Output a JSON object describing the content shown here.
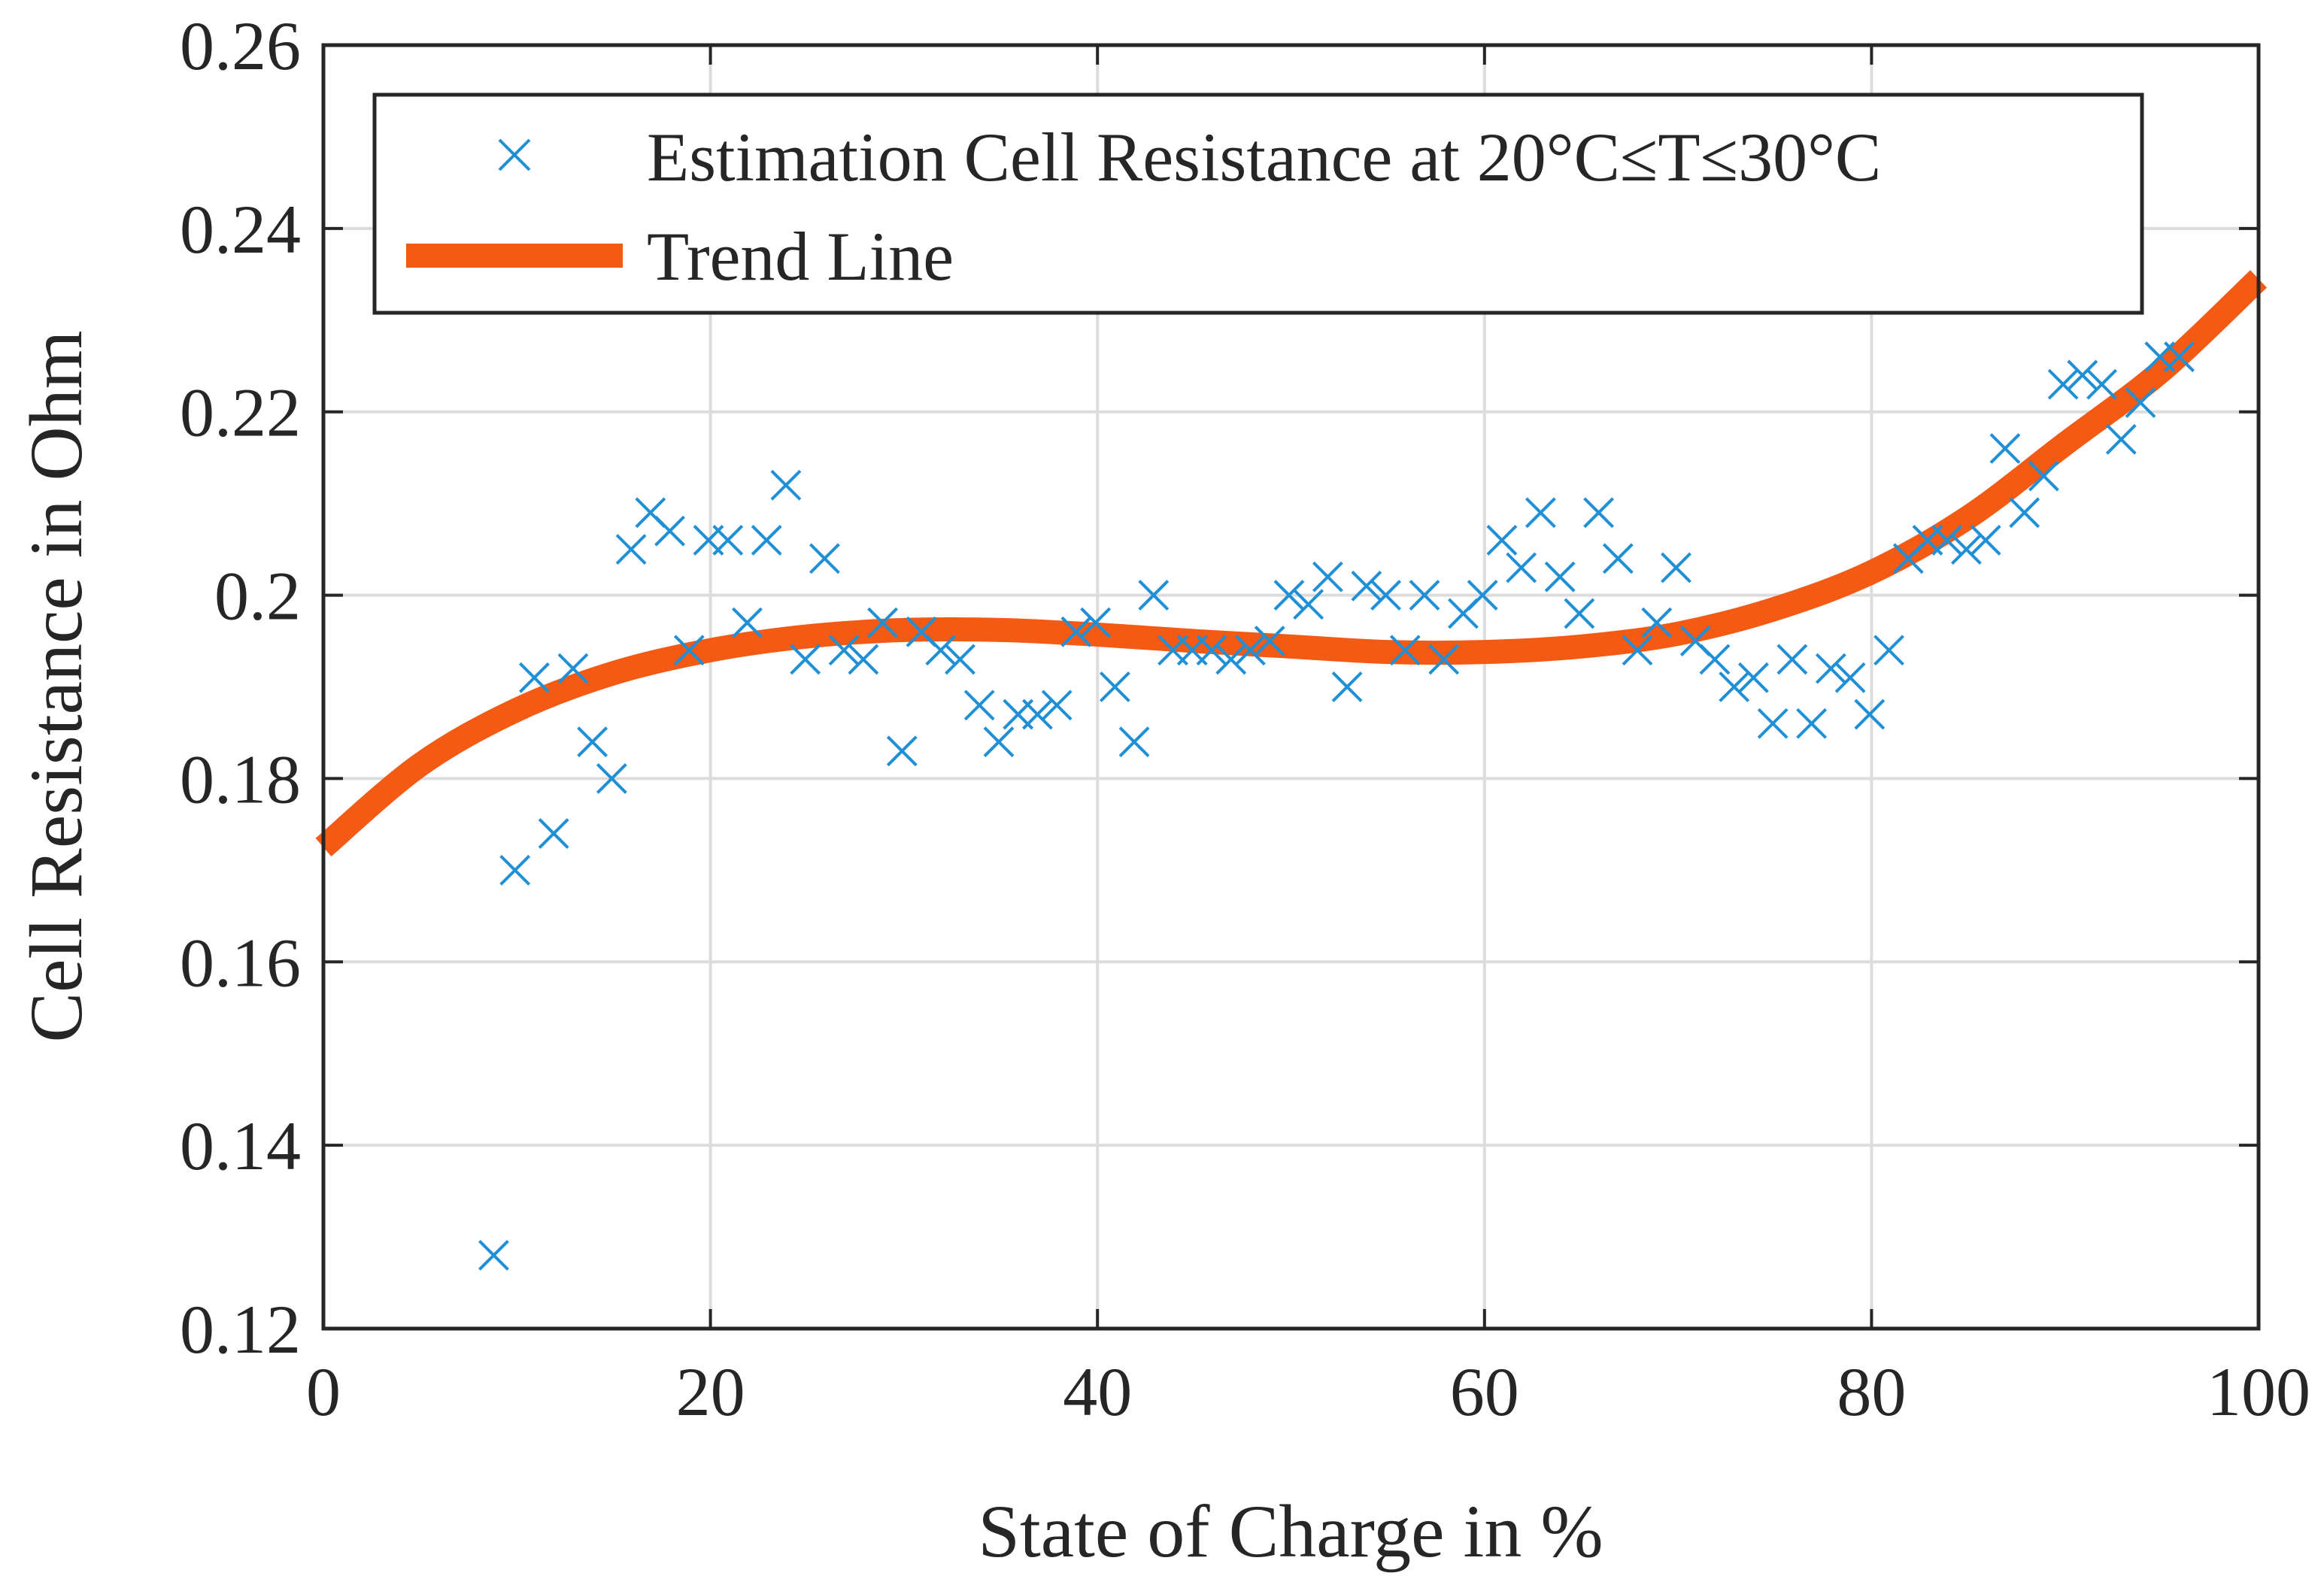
{
  "chart_data": {
    "type": "scatter",
    "title": "",
    "xlabel": "State of Charge in %",
    "ylabel": "Cell Resistance in Ohm",
    "xlim": [
      0,
      100
    ],
    "ylim": [
      0.12,
      0.26
    ],
    "grid": true,
    "x_ticks": [
      0,
      20,
      40,
      60,
      80,
      100
    ],
    "x_tick_labels": [
      "0",
      "20",
      "40",
      "60",
      "80",
      "100"
    ],
    "y_ticks": [
      0.12,
      0.14,
      0.16,
      0.18,
      0.2,
      0.22,
      0.24,
      0.26
    ],
    "y_tick_labels": [
      "0.12",
      "0.14",
      "0.16",
      "0.18",
      "0.2",
      "0.22",
      "0.24",
      "0.26"
    ],
    "legend_position": "top-right",
    "colors": {
      "scatter": "#1f8fd6",
      "trend": "#f55a14",
      "axes": "#262626",
      "grid": "#dcdcdc"
    },
    "series": [
      {
        "name": "Estimation Cell Resistance at 20°C≤T≤30°C",
        "kind": "scatter",
        "marker": "x",
        "points": [
          [
            8.8,
            0.128
          ],
          [
            9.9,
            0.17
          ],
          [
            10.9,
            0.191
          ],
          [
            11.9,
            0.174
          ],
          [
            12.9,
            0.192
          ],
          [
            13.9,
            0.184
          ],
          [
            14.9,
            0.18
          ],
          [
            15.9,
            0.205
          ],
          [
            16.9,
            0.209
          ],
          [
            17.9,
            0.207
          ],
          [
            18.9,
            0.194
          ],
          [
            19.9,
            0.206
          ],
          [
            20.9,
            0.206
          ],
          [
            21.9,
            0.197
          ],
          [
            22.9,
            0.206
          ],
          [
            23.9,
            0.212
          ],
          [
            24.9,
            0.193
          ],
          [
            25.9,
            0.204
          ],
          [
            26.9,
            0.194
          ],
          [
            27.9,
            0.193
          ],
          [
            28.9,
            0.197
          ],
          [
            29.9,
            0.183
          ],
          [
            30.9,
            0.196
          ],
          [
            31.9,
            0.194
          ],
          [
            32.9,
            0.193
          ],
          [
            33.9,
            0.188
          ],
          [
            34.9,
            0.184
          ],
          [
            35.9,
            0.187
          ],
          [
            36.9,
            0.187
          ],
          [
            37.9,
            0.188
          ],
          [
            38.9,
            0.196
          ],
          [
            39.9,
            0.197
          ],
          [
            40.9,
            0.19
          ],
          [
            41.9,
            0.184
          ],
          [
            42.9,
            0.2
          ],
          [
            43.9,
            0.194
          ],
          [
            44.9,
            0.194
          ],
          [
            45.9,
            0.194
          ],
          [
            46.9,
            0.193
          ],
          [
            47.9,
            0.194
          ],
          [
            48.9,
            0.195
          ],
          [
            49.9,
            0.2
          ],
          [
            50.9,
            0.199
          ],
          [
            51.9,
            0.202
          ],
          [
            52.9,
            0.19
          ],
          [
            53.9,
            0.201
          ],
          [
            54.9,
            0.2
          ],
          [
            55.9,
            0.194
          ],
          [
            56.9,
            0.2
          ],
          [
            57.9,
            0.193
          ],
          [
            58.9,
            0.198
          ],
          [
            59.9,
            0.2
          ],
          [
            60.9,
            0.206
          ],
          [
            61.9,
            0.203
          ],
          [
            62.9,
            0.209
          ],
          [
            63.9,
            0.202
          ],
          [
            64.9,
            0.198
          ],
          [
            65.9,
            0.209
          ],
          [
            66.9,
            0.204
          ],
          [
            67.9,
            0.194
          ],
          [
            68.9,
            0.197
          ],
          [
            69.9,
            0.203
          ],
          [
            70.9,
            0.195
          ],
          [
            71.9,
            0.193
          ],
          [
            72.9,
            0.19
          ],
          [
            73.9,
            0.191
          ],
          [
            74.9,
            0.186
          ],
          [
            75.9,
            0.193
          ],
          [
            76.9,
            0.186
          ],
          [
            77.9,
            0.192
          ],
          [
            78.9,
            0.191
          ],
          [
            79.9,
            0.187
          ],
          [
            80.9,
            0.194
          ],
          [
            81.9,
            0.204
          ],
          [
            82.9,
            0.206
          ],
          [
            83.9,
            0.206
          ],
          [
            84.9,
            0.205
          ],
          [
            85.9,
            0.206
          ],
          [
            86.9,
            0.216
          ],
          [
            87.9,
            0.209
          ],
          [
            88.9,
            0.213
          ],
          [
            89.9,
            0.223
          ],
          [
            90.9,
            0.224
          ],
          [
            91.9,
            0.223
          ],
          [
            92.9,
            0.217
          ],
          [
            93.9,
            0.221
          ],
          [
            94.9,
            0.226
          ],
          [
            95.9,
            0.226
          ]
        ]
      },
      {
        "name": "Trend Line",
        "kind": "line",
        "points": [
          [
            0,
            0.1725
          ],
          [
            5,
            0.1815
          ],
          [
            10,
            0.1875
          ],
          [
            15,
            0.1915
          ],
          [
            20,
            0.194
          ],
          [
            25,
            0.1955
          ],
          [
            30,
            0.1962
          ],
          [
            35,
            0.1962
          ],
          [
            40,
            0.1957
          ],
          [
            45,
            0.195
          ],
          [
            50,
            0.1944
          ],
          [
            55,
            0.1938
          ],
          [
            60,
            0.1938
          ],
          [
            65,
            0.1944
          ],
          [
            70,
            0.1958
          ],
          [
            75,
            0.1985
          ],
          [
            80,
            0.2025
          ],
          [
            85,
            0.2085
          ],
          [
            90,
            0.2165
          ],
          [
            95,
            0.2245
          ],
          [
            100,
            0.2345
          ]
        ]
      }
    ]
  }
}
